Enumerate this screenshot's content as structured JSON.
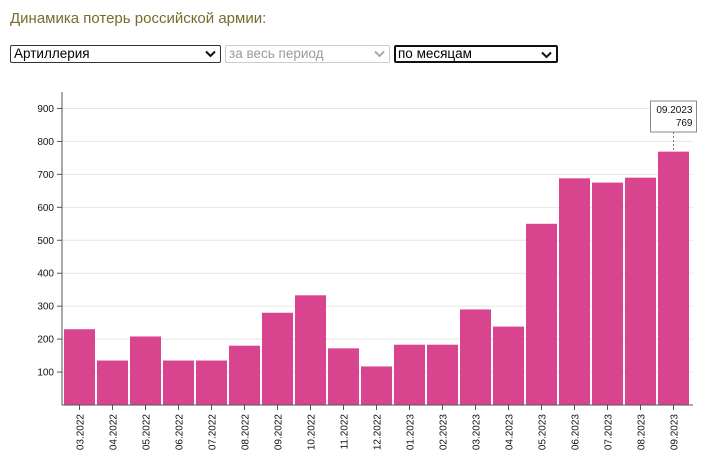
{
  "page": {
    "title": "Динамика потерь российской армии:"
  },
  "filters": {
    "category": "Артиллерия",
    "period": "за весь период",
    "grouping": "по месяцам"
  },
  "colors": {
    "bar": "#d9448f",
    "axis": "#555555",
    "grid": "#e6e6e6",
    "title": "#7a6a2a"
  },
  "chart_data": {
    "type": "bar",
    "categories": [
      "03.2022",
      "04.2022",
      "05.2022",
      "06.2022",
      "07.2022",
      "08.2022",
      "09.2022",
      "10.2022",
      "11.2022",
      "12.2022",
      "01.2023",
      "02.2023",
      "03.2023",
      "04.2023",
      "05.2023",
      "06.2023",
      "07.2023",
      "08.2023",
      "09.2023"
    ],
    "values": [
      230,
      135,
      208,
      135,
      135,
      180,
      280,
      333,
      172,
      117,
      183,
      183,
      290,
      238,
      550,
      688,
      675,
      690,
      769
    ],
    "ylim": [
      0,
      950
    ],
    "yticks": [
      100,
      200,
      300,
      400,
      500,
      600,
      700,
      800,
      900
    ],
    "grid": true,
    "tooltip": {
      "label": "09.2023",
      "value": "769"
    }
  }
}
